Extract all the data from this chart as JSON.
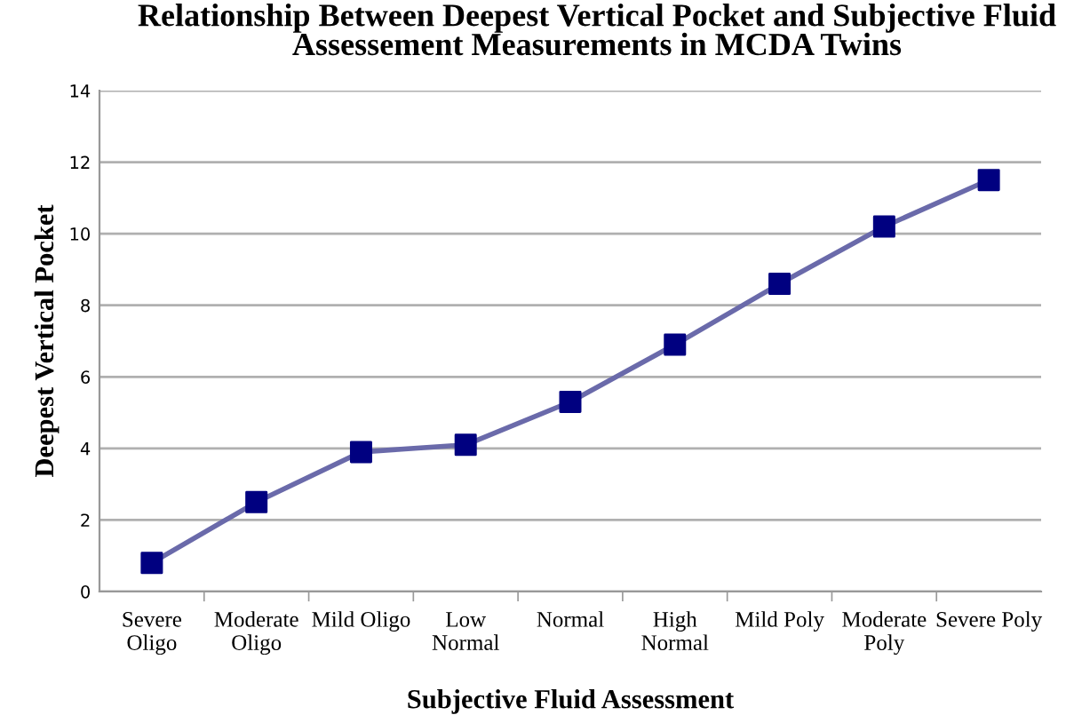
{
  "chart_data": {
    "type": "line",
    "title": "Relationship Between Deepest Vertical Pocket and Subjective Fluid\nAssessement Measurements in MCDA Twins",
    "xlabel": "Subjective Fluid Assessment",
    "ylabel": "Deepest Vertical Pocket",
    "categories": [
      "Severe\nOligo",
      "Moderate\nOligo",
      "Mild Oligo",
      "Low\nNormal",
      "Normal",
      "High\nNormal",
      "Mild Poly",
      "Moderate\nPoly",
      "Severe Poly"
    ],
    "series": [
      {
        "color": "#6a6aaa",
        "colors": [
          "#000080",
          "#000080",
          "#000080",
          "#000080",
          "#000080",
          "#000080",
          "#000080",
          "#000080",
          "#000080"
        ],
        "values": [
          0.8,
          2.5,
          3.9,
          4.1,
          5.3,
          6.9,
          8.6,
          10.2,
          11.5
        ]
      }
    ],
    "marker": "square",
    "ylim": [
      0,
      14
    ],
    "yticks": [
      0,
      2,
      4,
      6,
      8,
      10,
      12,
      14
    ],
    "grid": "y",
    "legend": false
  }
}
